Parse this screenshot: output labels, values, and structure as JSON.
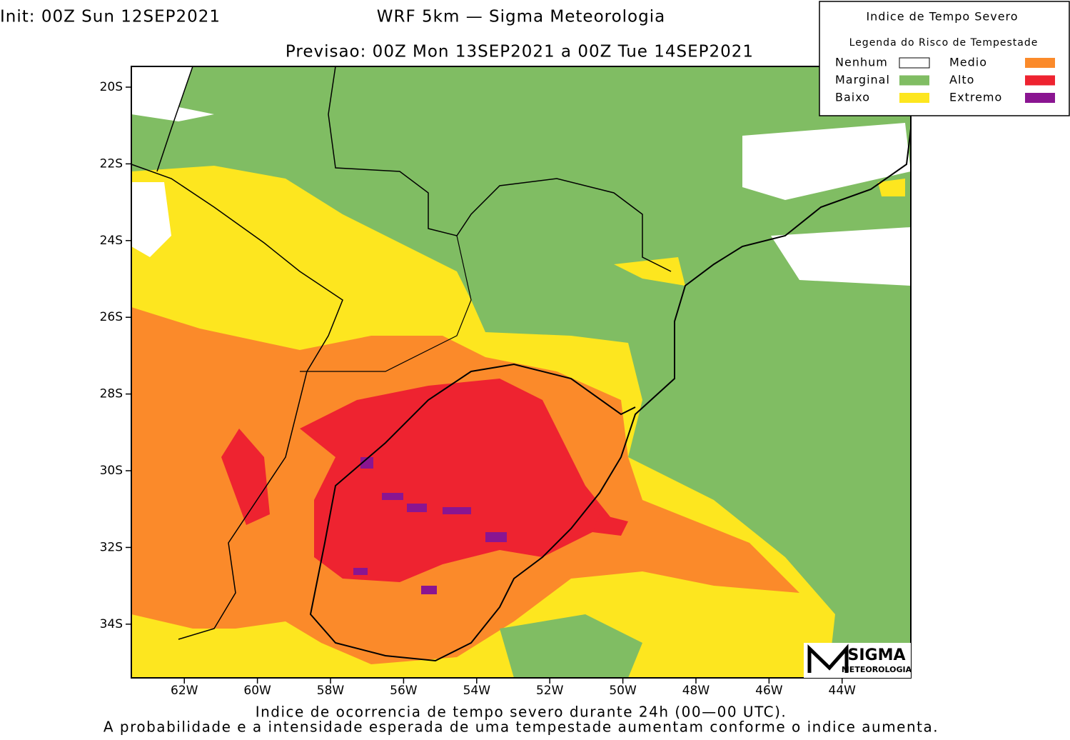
{
  "header": {
    "init": "Init: 00Z Sun 12SEP2021",
    "title": "WRF 5km — Sigma Meteorologia",
    "forecast": "Previsao: 00Z Mon 13SEP2021 a 00Z Tue 14SEP2021"
  },
  "map": {
    "lon_range": [
      -63.45,
      -42.12
    ],
    "lat_range": [
      -19.46,
      -35.4
    ],
    "lon_ticks": [
      {
        "value": -62,
        "label": "62W"
      },
      {
        "value": -60,
        "label": "60W"
      },
      {
        "value": -58,
        "label": "58W"
      },
      {
        "value": -56,
        "label": "56W"
      },
      {
        "value": -54,
        "label": "54W"
      },
      {
        "value": -52,
        "label": "52W"
      },
      {
        "value": -50,
        "label": "50W"
      },
      {
        "value": -48,
        "label": "48W"
      },
      {
        "value": -46,
        "label": "46W"
      },
      {
        "value": -44,
        "label": "44W"
      }
    ],
    "lat_ticks": [
      {
        "value": -20,
        "label": "20S"
      },
      {
        "value": -22,
        "label": "22S"
      },
      {
        "value": -24,
        "label": "24S"
      },
      {
        "value": -26,
        "label": "26S"
      },
      {
        "value": -28,
        "label": "28S"
      },
      {
        "value": -30,
        "label": "30S"
      },
      {
        "value": -32,
        "label": "32S"
      },
      {
        "value": -34,
        "label": "34S"
      }
    ]
  },
  "legend": {
    "title": "Indice de Tempo Severo",
    "subtitle": "Legenda do Risco de Tempestade",
    "items": [
      {
        "name": "Nenhum",
        "color": "#ffffff"
      },
      {
        "name": "Marginal",
        "color": "#80bd63"
      },
      {
        "name": "Baixo",
        "color": "#fde61f"
      },
      {
        "name": "Medio",
        "color": "#fb8a2a"
      },
      {
        "name": "Alto",
        "color": "#ee2330"
      },
      {
        "name": "Extremo",
        "color": "#8a1591"
      }
    ]
  },
  "logo": {
    "name": "SIGMA",
    "sub": "METEOROLOGIA"
  },
  "footer": {
    "line1": "Indice de ocorrencia de tempo severo durante 24h (00—00 UTC).",
    "line2": "A probabilidade e a intensidade esperada de uma tempestade aumentam conforme o indice aumenta."
  }
}
